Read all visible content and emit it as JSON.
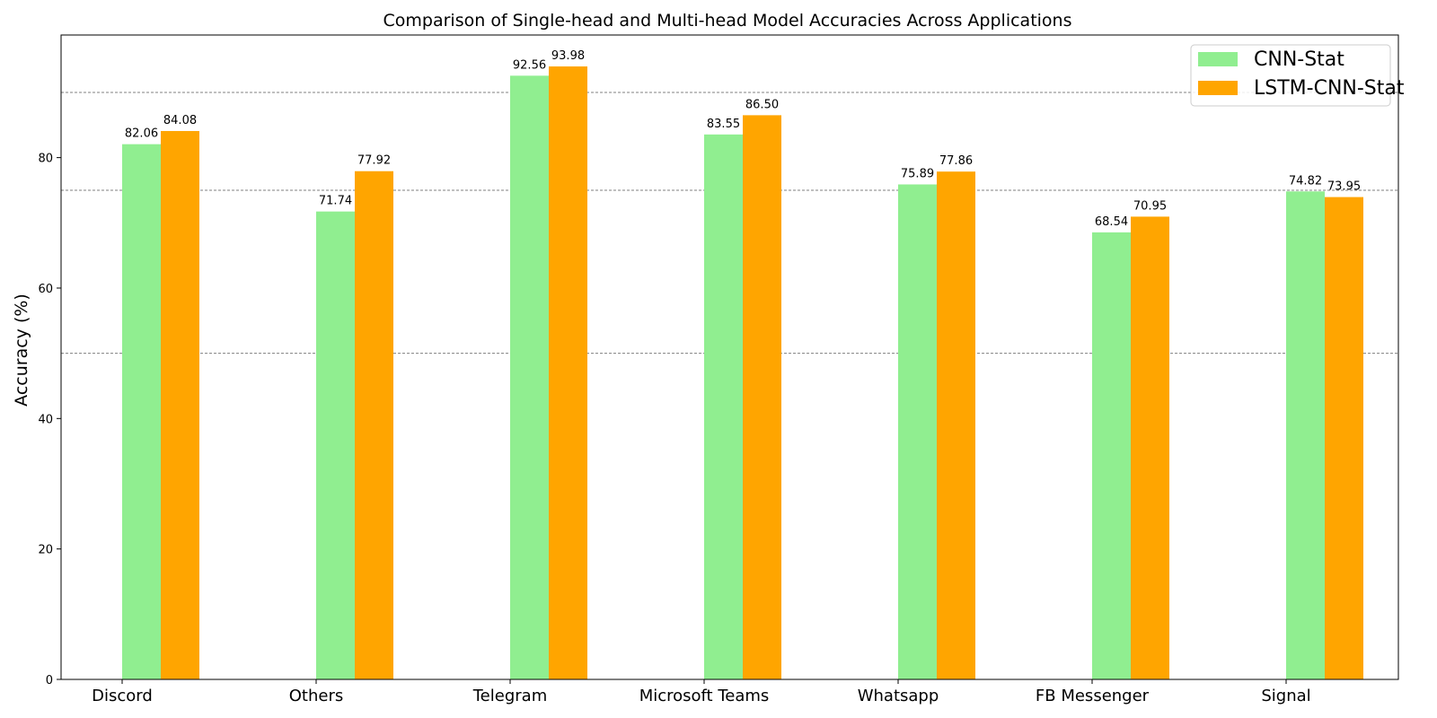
{
  "chart_data": {
    "type": "bar",
    "title": "Comparison of Single-head and Multi-head Model Accuracies Across Applications",
    "xlabel": "",
    "ylabel": "Accuracy (%)",
    "ylim": [
      0,
      98.8
    ],
    "yticks": [
      "0",
      "20",
      "40",
      "60",
      "80"
    ],
    "reference_lines": [
      50,
      75,
      90
    ],
    "grid": false,
    "legend_position": "top-right",
    "categories": [
      "Discord",
      "Others",
      "Telegram",
      "Microsoft Teams",
      "Whatsapp",
      "FB Messenger",
      "Signal"
    ],
    "series": [
      {
        "name": "CNN-Stat",
        "color": "#90ee90",
        "values": [
          82.06,
          71.74,
          92.56,
          83.55,
          75.89,
          68.54,
          74.82
        ],
        "labels": [
          "82.06",
          "71.74",
          "92.56",
          "83.55",
          "75.89",
          "68.54",
          "74.82"
        ]
      },
      {
        "name": "LSTM-CNN-Stat",
        "color": "#ffa500",
        "values": [
          84.08,
          77.92,
          93.98,
          86.5,
          77.86,
          70.95,
          73.95
        ],
        "labels": [
          "84.08",
          "77.92",
          "93.98",
          "86.50",
          "77.86",
          "70.95",
          "73.95"
        ]
      }
    ]
  }
}
